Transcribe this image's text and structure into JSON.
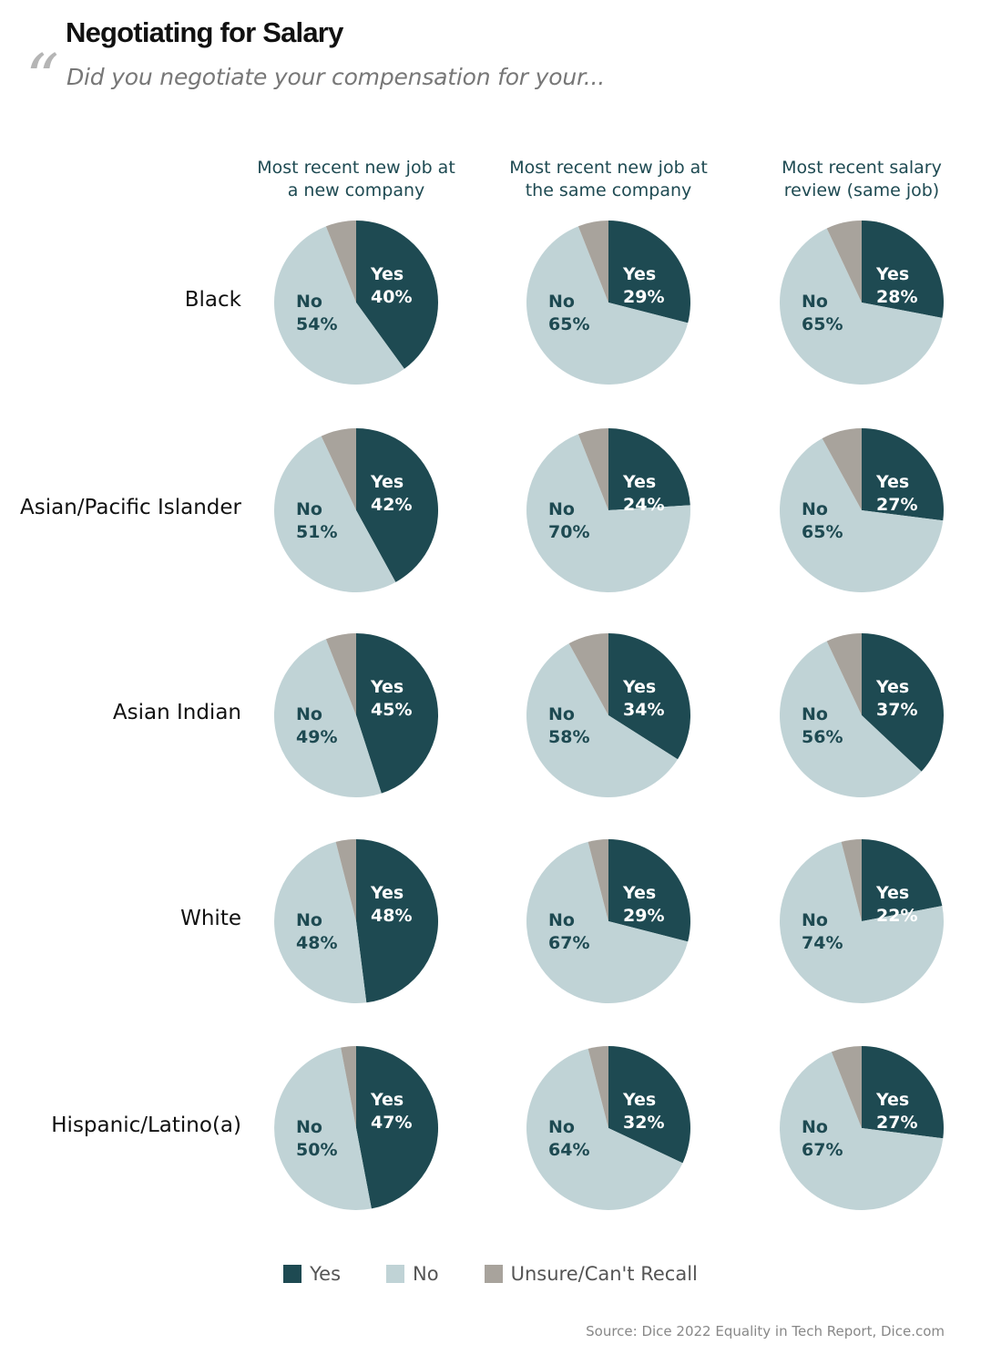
{
  "title": "Negotiating for Salary",
  "subtitle": "Did you negotiate your compensation for your...",
  "source": "Source: Dice 2022 Equality in Tech Report, Dice.com",
  "colors": {
    "yes": "#1e4a52",
    "no": "#c0d3d6",
    "unsure": "#a8a39c"
  },
  "chart_data": {
    "type": "pie",
    "columns": [
      "Most recent new job at a new company",
      "Most recent new job at the same company",
      "Most recent salary review (same job)"
    ],
    "rows": [
      "Black",
      "Asian/Pacific Islander",
      "Asian Indian",
      "White",
      "Hispanic/Latino(a)"
    ],
    "legend": [
      "Yes",
      "No",
      "Unsure/Can't Recall"
    ],
    "legend_position": "bottom",
    "slice_labels": {
      "yes": "Yes",
      "no": "No"
    },
    "values": [
      [
        {
          "yes": 40,
          "no": 54,
          "unsure": 6
        },
        {
          "yes": 29,
          "no": 65,
          "unsure": 6
        },
        {
          "yes": 28,
          "no": 65,
          "unsure": 7
        }
      ],
      [
        {
          "yes": 42,
          "no": 51,
          "unsure": 7
        },
        {
          "yes": 24,
          "no": 70,
          "unsure": 6
        },
        {
          "yes": 27,
          "no": 65,
          "unsure": 8
        }
      ],
      [
        {
          "yes": 45,
          "no": 49,
          "unsure": 6
        },
        {
          "yes": 34,
          "no": 58,
          "unsure": 8
        },
        {
          "yes": 37,
          "no": 56,
          "unsure": 7
        }
      ],
      [
        {
          "yes": 48,
          "no": 48,
          "unsure": 4
        },
        {
          "yes": 29,
          "no": 67,
          "unsure": 4
        },
        {
          "yes": 22,
          "no": 74,
          "unsure": 4
        }
      ],
      [
        {
          "yes": 47,
          "no": 50,
          "unsure": 3
        },
        {
          "yes": 32,
          "no": 64,
          "unsure": 4
        },
        {
          "yes": 27,
          "no": 67,
          "unsure": 6
        }
      ]
    ]
  }
}
